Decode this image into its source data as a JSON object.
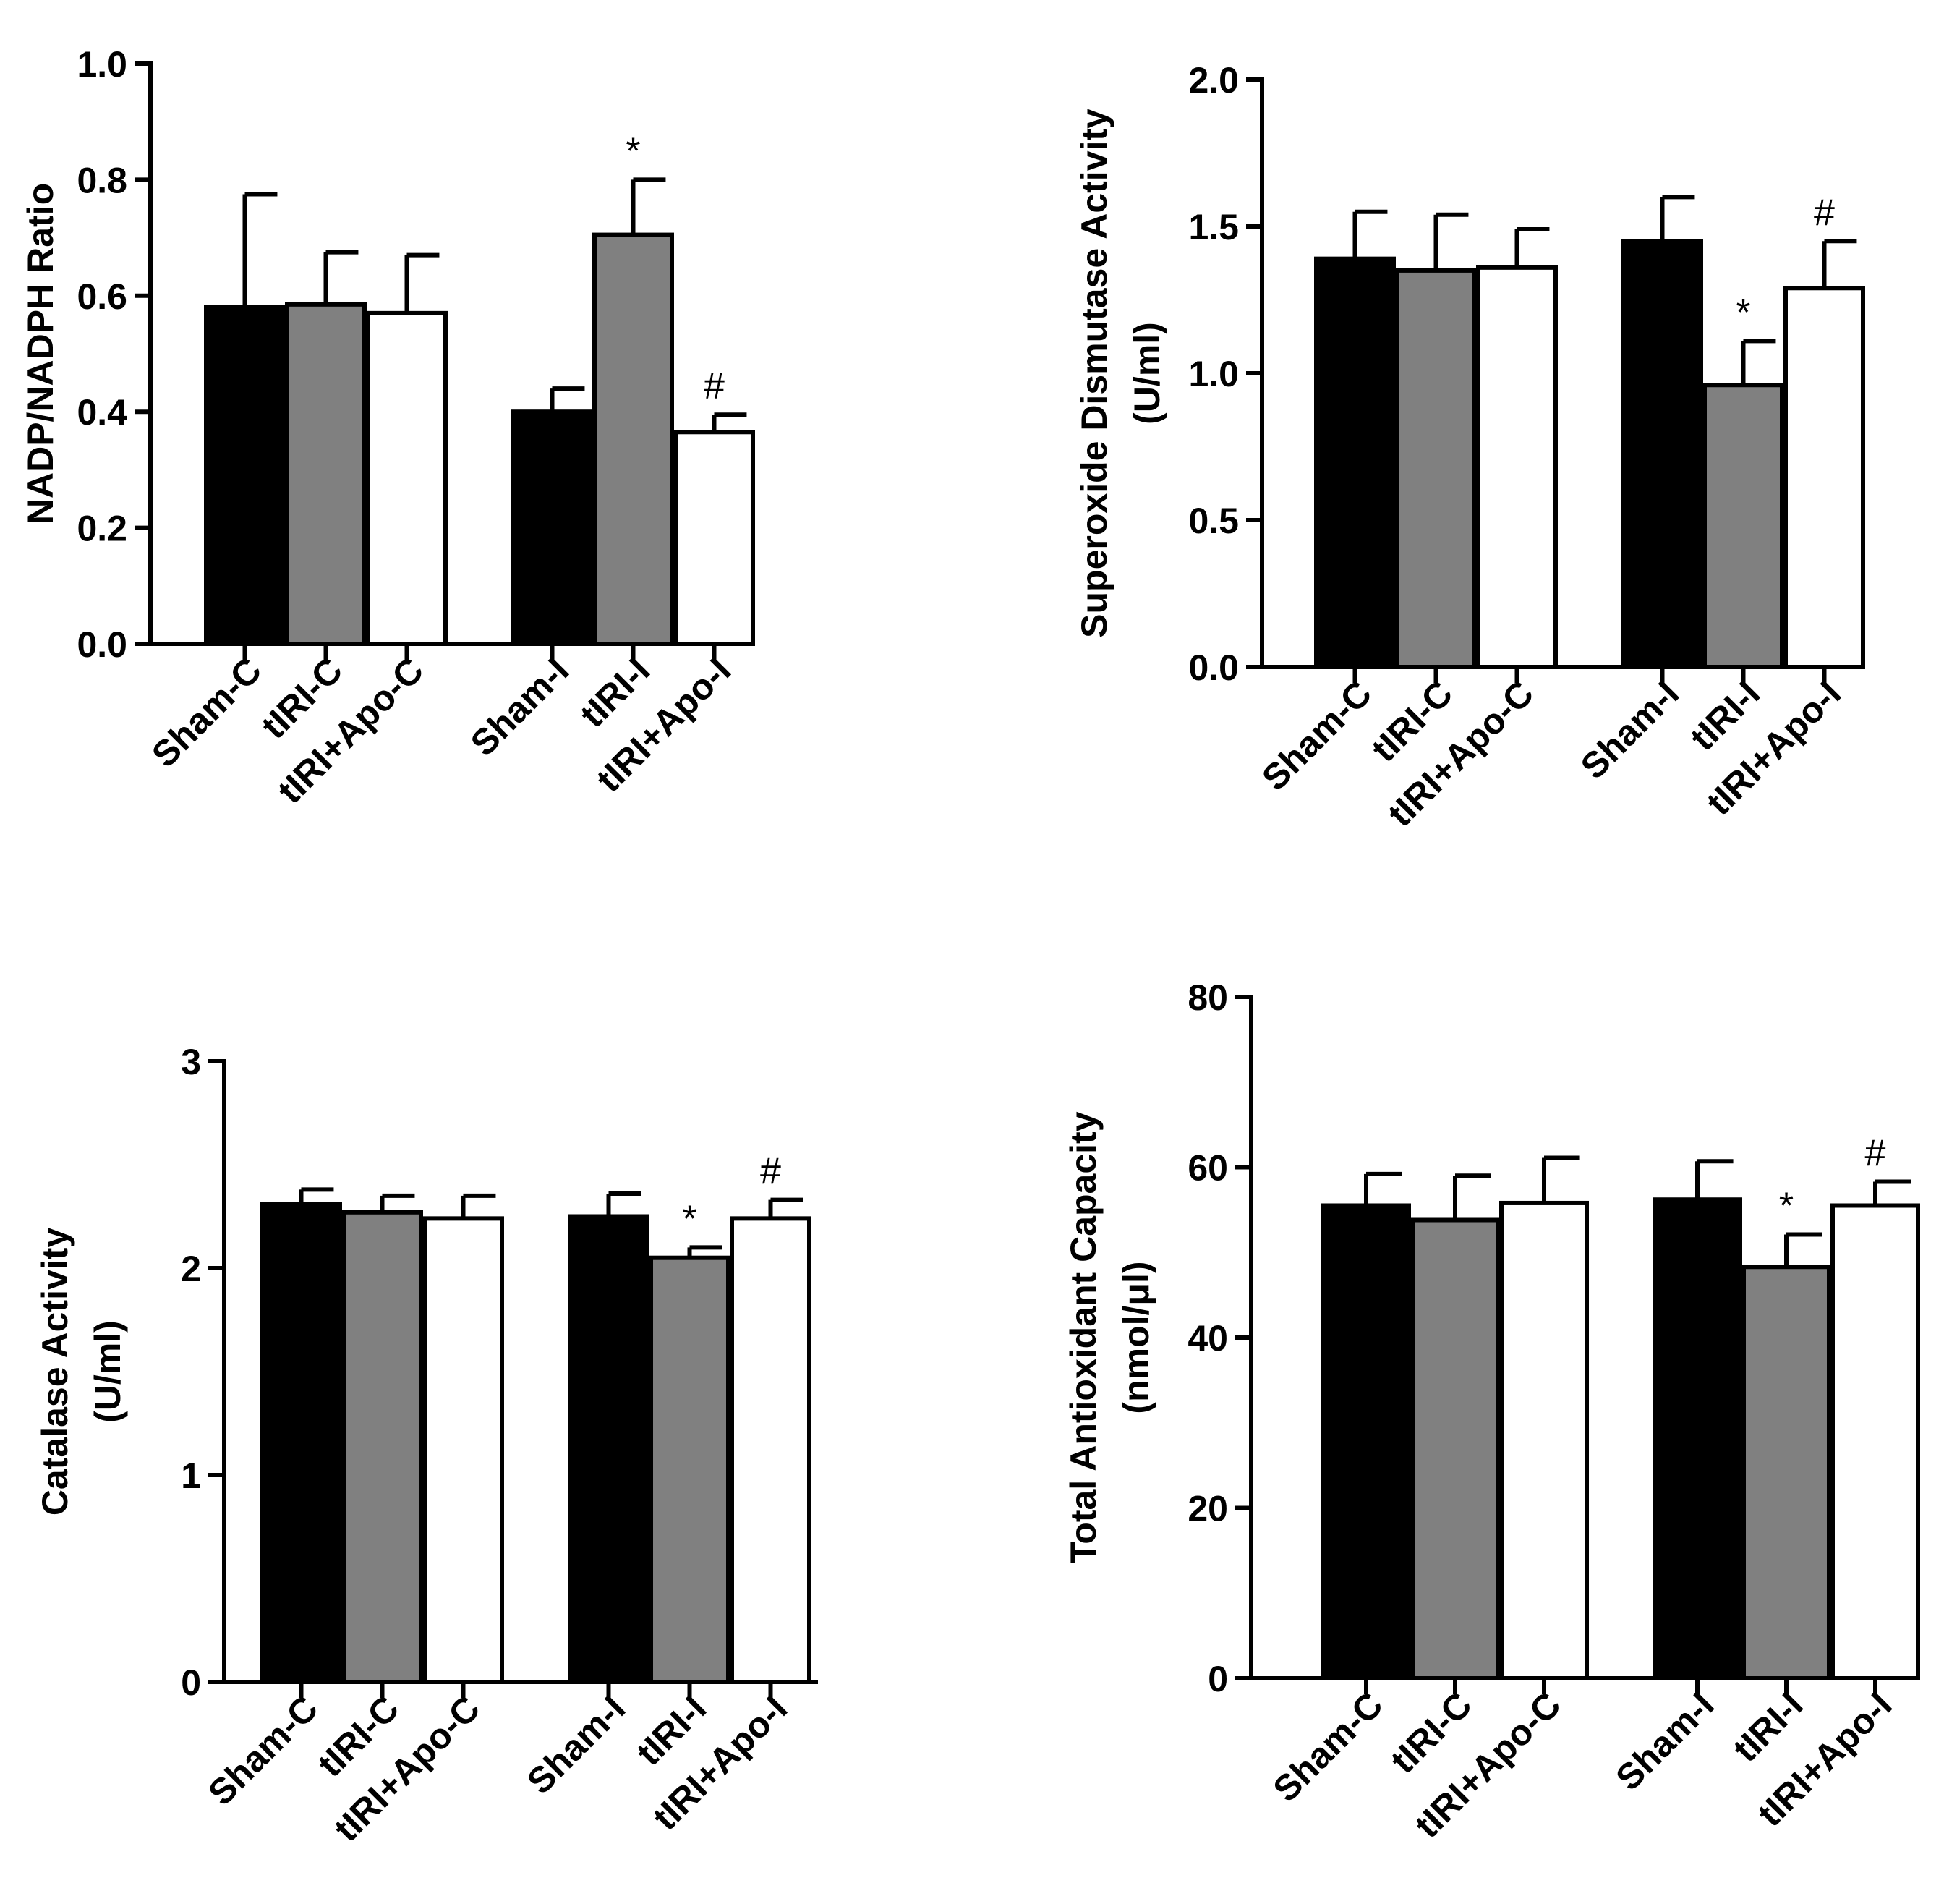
{
  "chart_data": [
    {
      "type": "bar",
      "ylabel": [
        "NADP/NADPH Ratio"
      ],
      "ylim": [
        0,
        1.0
      ],
      "yticks": [
        0.0,
        0.2,
        0.4,
        0.6,
        0.8,
        1.0
      ],
      "tick_decimals": 1,
      "categories": [
        "Sham-C",
        "tIRI-C",
        "tIRI+Apo-C",
        "Sham-I",
        "tIRI-I",
        "tIRI+Apo-I"
      ],
      "fills": [
        "#000000",
        "#808080",
        "#ffffff",
        "#000000",
        "#808080",
        "#ffffff"
      ],
      "values": [
        0.58,
        0.585,
        0.57,
        0.4,
        0.705,
        0.365
      ],
      "errors": [
        0.195,
        0.09,
        0.1,
        0.04,
        0.095,
        0.03
      ],
      "annotations": [
        "",
        "",
        "",
        "",
        "*",
        "#"
      ]
    },
    {
      "type": "bar",
      "ylabel": [
        "Superoxide Dismutase Activity",
        "(U/ml)"
      ],
      "ylim": [
        0,
        2.0
      ],
      "yticks": [
        0.0,
        0.5,
        1.0,
        1.5,
        2.0
      ],
      "tick_decimals": 1,
      "categories": [
        "Sham-C",
        "tIRI-C",
        "tIRI+Apo-C",
        "Sham-I",
        "tIRI-I",
        "tIRI+Apo-I"
      ],
      "fills": [
        "#000000",
        "#808080",
        "#ffffff",
        "#000000",
        "#808080",
        "#ffffff"
      ],
      "values": [
        1.39,
        1.35,
        1.36,
        1.45,
        0.96,
        1.29
      ],
      "errors": [
        0.16,
        0.19,
        0.13,
        0.15,
        0.15,
        0.16
      ],
      "annotations": [
        "",
        "",
        "",
        "",
        "*",
        "#"
      ]
    },
    {
      "type": "bar",
      "ylabel": [
        "Catalase Activity",
        "(U/ml)"
      ],
      "ylim": [
        0,
        3
      ],
      "yticks": [
        0,
        1,
        2,
        3
      ],
      "tick_decimals": 0,
      "categories": [
        "Sham-C",
        "tIRI-C",
        "tIRI+Apo-C",
        "Sham-I",
        "tIRI-I",
        "tIRI+Apo-I"
      ],
      "fills": [
        "#000000",
        "#808080",
        "#ffffff",
        "#000000",
        "#808080",
        "#ffffff"
      ],
      "values": [
        2.31,
        2.27,
        2.24,
        2.25,
        2.05,
        2.24
      ],
      "errors": [
        0.07,
        0.08,
        0.11,
        0.11,
        0.05,
        0.09
      ],
      "annotations": [
        "",
        "",
        "",
        "",
        "*",
        "#"
      ]
    },
    {
      "type": "bar",
      "ylabel": [
        "Total Antioxidant Capacity",
        "(nmol/μl)"
      ],
      "ylim": [
        0,
        80
      ],
      "yticks": [
        0,
        20,
        40,
        60,
        80
      ],
      "tick_decimals": 0,
      "categories": [
        "Sham-C",
        "tIRI-C",
        "tIRI+Apo-C",
        "Sham-I",
        "tIRI-I",
        "tIRI+Apo-I"
      ],
      "fills": [
        "#000000",
        "#808080",
        "#ffffff",
        "#000000",
        "#808080",
        "#ffffff"
      ],
      "values": [
        55.5,
        53.8,
        55.8,
        56.2,
        48.3,
        55.5
      ],
      "errors": [
        3.7,
        5.2,
        5.3,
        4.5,
        3.8,
        2.8
      ],
      "annotations": [
        "",
        "",
        "",
        "",
        "*",
        "#"
      ]
    }
  ]
}
